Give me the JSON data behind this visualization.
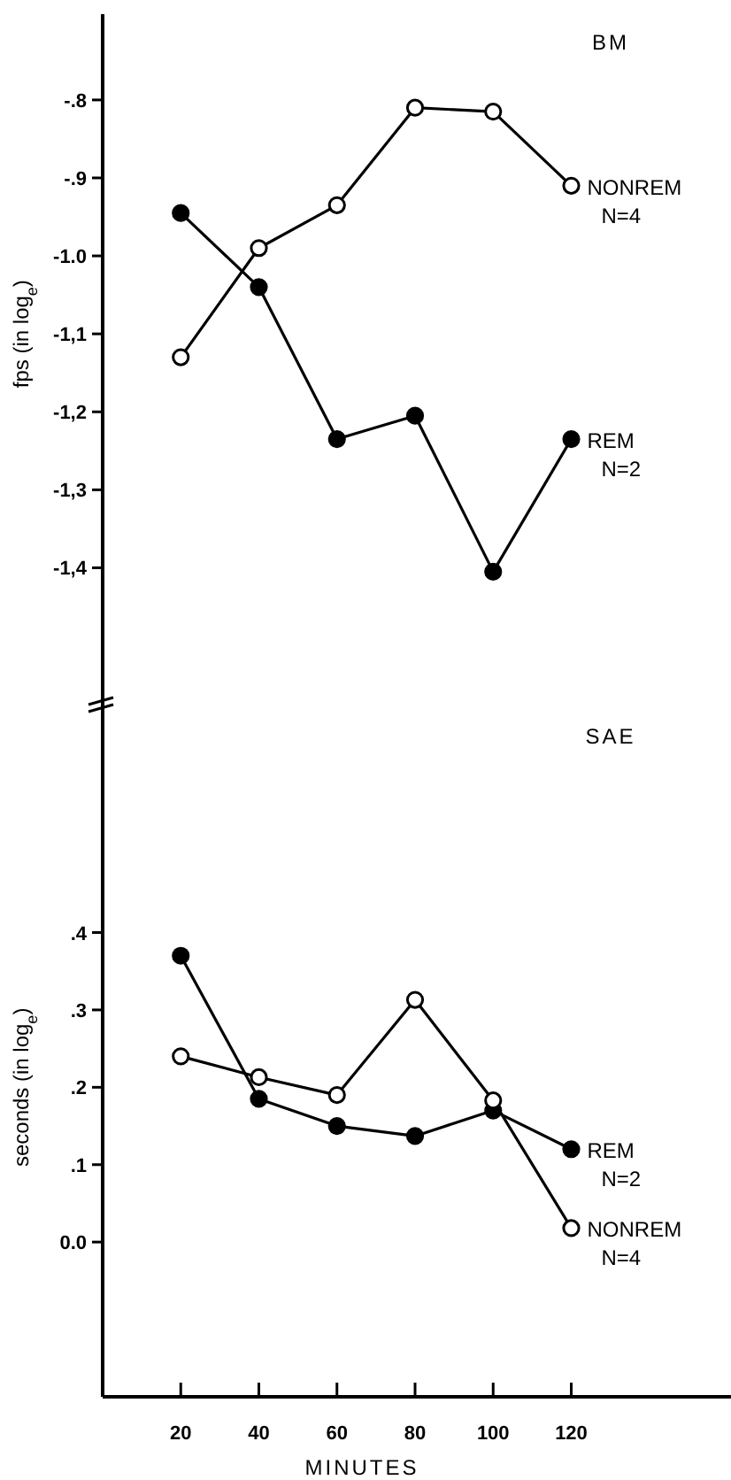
{
  "chart_data": [
    {
      "type": "line",
      "title": "BM",
      "ylabel": "fps (in log$_{e}$)",
      "x": [
        20,
        40,
        60,
        80,
        100,
        120
      ],
      "xlim": [
        0,
        160
      ],
      "ylim": [
        -1.58,
        -0.69
      ],
      "yticks": [
        {
          "value": -0.8,
          "label": "-.8"
        },
        {
          "value": -0.9,
          "label": "-.9"
        },
        {
          "value": -1.0,
          "label": "-1.0"
        },
        {
          "value": -1.1,
          "label": "-1,1"
        },
        {
          "value": -1.2,
          "label": "-1,2"
        },
        {
          "value": -1.3,
          "label": "-1,3"
        },
        {
          "value": -1.4,
          "label": "-1,4"
        }
      ],
      "tick_labels": "y",
      "marker": "circle",
      "line_style": "solid",
      "series": [
        {
          "name": "NONREM N=4",
          "color": "#000000",
          "values": [
            -1.13,
            -0.99,
            -0.935,
            -0.81,
            -0.815,
            -0.91
          ]
        },
        {
          "name": "REM N=2",
          "color": "#000000",
          "values": [
            -0.945,
            -1.04,
            -1.235,
            -1.205,
            -1.405,
            -1.235
          ]
        }
      ]
    },
    {
      "type": "line",
      "title": "SAE",
      "ylabel": "seconds (in log$_{e}$)",
      "xlabel": "MINUTES",
      "x": [
        20,
        40,
        60,
        80,
        100,
        120
      ],
      "xlim": [
        0,
        160
      ],
      "ylim": [
        -0.2,
        0.69
      ],
      "xticks": [
        20,
        40,
        60,
        80,
        100,
        120
      ],
      "yticks": [
        {
          "value": 0.4,
          "label": ".4"
        },
        {
          "value": 0.3,
          "label": ".3"
        },
        {
          "value": 0.2,
          "label": ".2"
        },
        {
          "value": 0.1,
          "label": ".1"
        },
        {
          "value": 0.0,
          "label": "0.0"
        }
      ],
      "marker": "circle",
      "line_style": "solid",
      "series": [
        {
          "name": "REM N=2",
          "color": "#000000",
          "values": [
            0.37,
            0.185,
            0.15,
            0.137,
            0.17,
            0.12
          ]
        },
        {
          "name": "NONREM N=4",
          "color": "#000000",
          "values": [
            0.24,
            0.213,
            0.19,
            0.313,
            0.183,
            0.018
          ]
        }
      ]
    }
  ]
}
